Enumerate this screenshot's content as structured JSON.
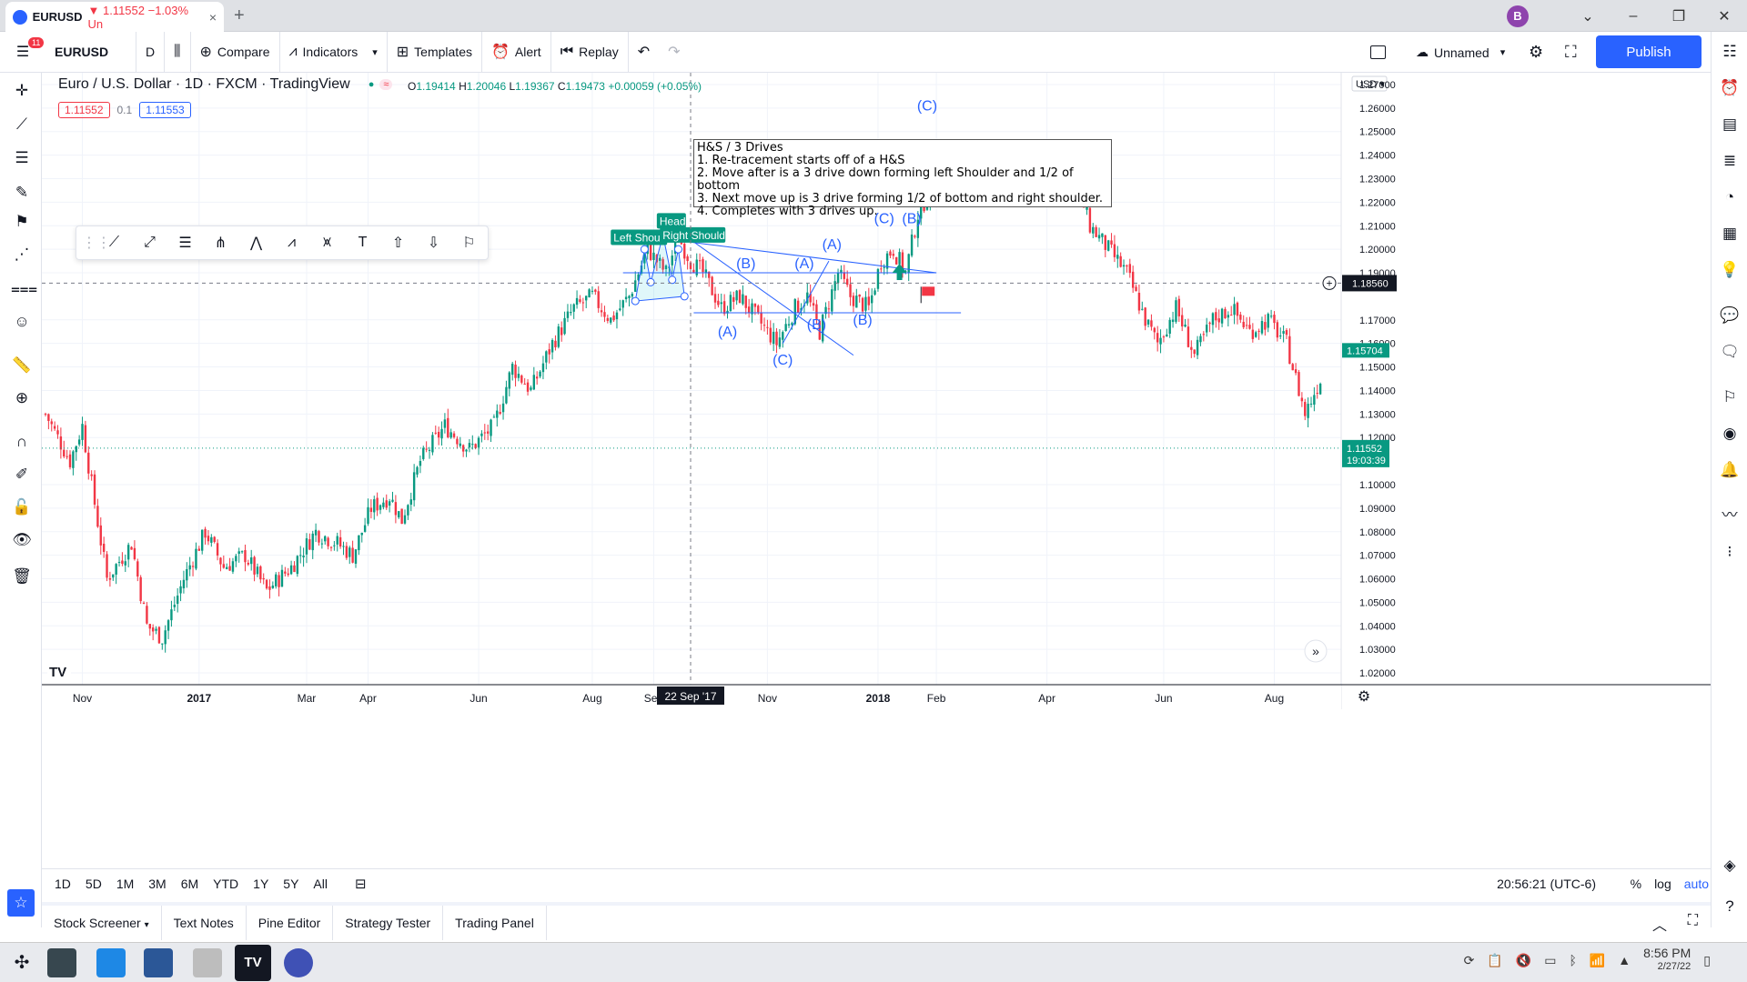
{
  "browser": {
    "tab_symbol": "EURUSD",
    "tab_change": "▼ 1.11552 −1.03% Un",
    "tab_close": "×",
    "new_tab": "+",
    "avatar": "B"
  },
  "toolbar": {
    "menu_badge": "11",
    "symbol": "EURUSD",
    "interval": "D",
    "compare": "Compare",
    "indicators": "Indicators",
    "templates": "Templates",
    "alert": "Alert",
    "replay": "Replay",
    "layout_name": "Unnamed",
    "publish": "Publish"
  },
  "legend": {
    "title": "Euro / U.S. Dollar · 1D · FXCM · TradingView",
    "ohlc": {
      "o_label": "O",
      "o": "1.19414",
      "h_label": "H",
      "h": "1.20046",
      "l_label": "L",
      "l": "1.19367",
      "c_label": "C",
      "c": "1.19473",
      "change": "+0.00059 (+0.05%)"
    },
    "bid": "1.11552",
    "spread": "0.1",
    "ask": "1.11553"
  },
  "note": {
    "lines": [
      "H&S / 3 Drives",
      "1. Re-tracement starts off of a H&S",
      "2. Move after is a 3 drive down forming left Shoulder and 1/2 of bottom",
      "3. Next move up is 3 drive forming 1/2 of bottom and right shoulder.",
      "4. Completes with 3 drives up."
    ]
  },
  "chart_data": {
    "type": "candlestick",
    "symbol": "EURUSD",
    "currency": "USD",
    "ylim": [
      1.015,
      1.275
    ],
    "y_ticks": [
      1.27,
      1.26,
      1.25,
      1.24,
      1.23,
      1.22,
      1.21,
      1.2,
      1.19,
      1.17,
      1.16,
      1.15,
      1.14,
      1.13,
      1.12,
      1.1,
      1.09,
      1.08,
      1.07,
      1.06,
      1.05,
      1.04,
      1.03,
      1.02
    ],
    "y_tick_labels": [
      "1.27000",
      "1.26000",
      "1.25000",
      "1.24000",
      "1.23000",
      "1.22000",
      "1.21000",
      "1.20000",
      "1.19000",
      "1.17000",
      "1.16000",
      "1.15000",
      "1.14000",
      "1.13000",
      "1.12000",
      "1.10000",
      "1.09000",
      "1.08000",
      "1.07000",
      "1.06000",
      "1.05000",
      "1.04000",
      "1.03000",
      "1.02000"
    ],
    "x_labels": [
      "Nov",
      "2017",
      "Mar",
      "Apr",
      "Jun",
      "Aug",
      "Sep",
      "Nov",
      "2018",
      "Feb",
      "Apr",
      "Jun",
      "Aug"
    ],
    "x_label_index": [
      12,
      50,
      85,
      105,
      141,
      178,
      198,
      235,
      271,
      290,
      326,
      364,
      400
    ],
    "crosshair_date": "22 Sep '17",
    "crosshair_index": 210,
    "crosshair_price": "1.18560",
    "last_price": "1.11552",
    "countdown": "19:03:39",
    "price_marker": "1.15704",
    "price_path": [
      [
        0,
        1.13
      ],
      [
        8,
        1.11
      ],
      [
        12,
        1.125
      ],
      [
        15,
        1.1
      ],
      [
        20,
        1.06
      ],
      [
        28,
        1.075
      ],
      [
        33,
        1.04
      ],
      [
        38,
        1.035
      ],
      [
        45,
        1.06
      ],
      [
        52,
        1.08
      ],
      [
        58,
        1.065
      ],
      [
        65,
        1.07
      ],
      [
        72,
        1.055
      ],
      [
        80,
        1.065
      ],
      [
        88,
        1.08
      ],
      [
        95,
        1.075
      ],
      [
        100,
        1.07
      ],
      [
        106,
        1.09
      ],
      [
        112,
        1.095
      ],
      [
        116,
        1.085
      ],
      [
        122,
        1.11
      ],
      [
        130,
        1.125
      ],
      [
        138,
        1.115
      ],
      [
        146,
        1.125
      ],
      [
        152,
        1.15
      ],
      [
        158,
        1.14
      ],
      [
        165,
        1.16
      ],
      [
        172,
        1.175
      ],
      [
        178,
        1.18
      ],
      [
        184,
        1.17
      ],
      [
        190,
        1.18
      ],
      [
        196,
        1.2
      ],
      [
        202,
        1.19
      ],
      [
        206,
        1.205
      ],
      [
        210,
        1.195
      ],
      [
        214,
        1.19
      ],
      [
        220,
        1.175
      ],
      [
        226,
        1.18
      ],
      [
        232,
        1.17
      ],
      [
        238,
        1.16
      ],
      [
        244,
        1.175
      ],
      [
        248,
        1.18
      ],
      [
        252,
        1.165
      ],
      [
        258,
        1.19
      ],
      [
        262,
        1.18
      ],
      [
        268,
        1.175
      ],
      [
        272,
        1.195
      ],
      [
        276,
        1.2
      ],
      [
        280,
        1.19
      ],
      [
        284,
        1.215
      ],
      [
        288,
        1.225
      ],
      [
        292,
        1.245
      ],
      [
        298,
        1.23
      ],
      [
        304,
        1.24
      ],
      [
        310,
        1.225
      ],
      [
        316,
        1.235
      ],
      [
        322,
        1.23
      ],
      [
        328,
        1.225
      ],
      [
        334,
        1.235
      ],
      [
        340,
        1.21
      ],
      [
        346,
        1.2
      ],
      [
        352,
        1.19
      ],
      [
        358,
        1.17
      ],
      [
        362,
        1.16
      ],
      [
        368,
        1.175
      ],
      [
        374,
        1.155
      ],
      [
        380,
        1.17
      ],
      [
        386,
        1.175
      ],
      [
        392,
        1.165
      ],
      [
        398,
        1.17
      ],
      [
        404,
        1.16
      ],
      [
        410,
        1.13
      ],
      [
        415,
        1.145
      ]
    ],
    "annotations": [
      {
        "text": "(A)",
        "at": [
          222,
          1.163
        ]
      },
      {
        "text": "(B)",
        "at": [
          228,
          1.192
        ]
      },
      {
        "text": "(C)",
        "at": [
          240,
          1.151
        ]
      },
      {
        "text": "(A)",
        "at": [
          247,
          1.192
        ]
      },
      {
        "text": "(B)",
        "at": [
          251,
          1.166
        ]
      },
      {
        "text": "(A)",
        "at": [
          256,
          1.2
        ]
      },
      {
        "text": "(B)",
        "at": [
          266,
          1.168
        ]
      },
      {
        "text": "(C)",
        "at": [
          273,
          1.211
        ]
      },
      {
        "text": "(A)",
        "at": [
          281,
          1.232
        ]
      },
      {
        "text": "(B)",
        "at": [
          282,
          1.211
        ]
      },
      {
        "text": "(C)",
        "at": [
          287,
          1.259
        ]
      }
    ],
    "hs_labels": [
      "Left Shou",
      "Head",
      "Right Shoulder"
    ]
  },
  "floatbar_icons": [
    "drag-icon",
    "trendline-icon",
    "ray-icon",
    "parallel-channel-icon",
    "pitchfork-icon",
    "xabcd-icon",
    "abcd-icon",
    "elliott-wave-icon",
    "text-icon",
    "arrow-up-icon",
    "arrow-down-icon",
    "flag-icon"
  ],
  "rangebar": {
    "ranges": [
      "1D",
      "5D",
      "1M",
      "3M",
      "6M",
      "YTD",
      "1Y",
      "5Y",
      "All"
    ],
    "clock": "20:56:21 (UTC-6)",
    "pct": "%",
    "log": "log",
    "auto": "auto"
  },
  "panels": [
    "Stock Screener",
    "Text Notes",
    "Pine Editor",
    "Strategy Tester",
    "Trading Panel"
  ],
  "taskbar": {
    "time": "8:56 PM",
    "date": "2/27/22"
  },
  "colors": {
    "up": "#089981",
    "down": "#f23645",
    "drawing": "#2962ff",
    "accent": "#2962ff",
    "label_bg": "#089981"
  }
}
